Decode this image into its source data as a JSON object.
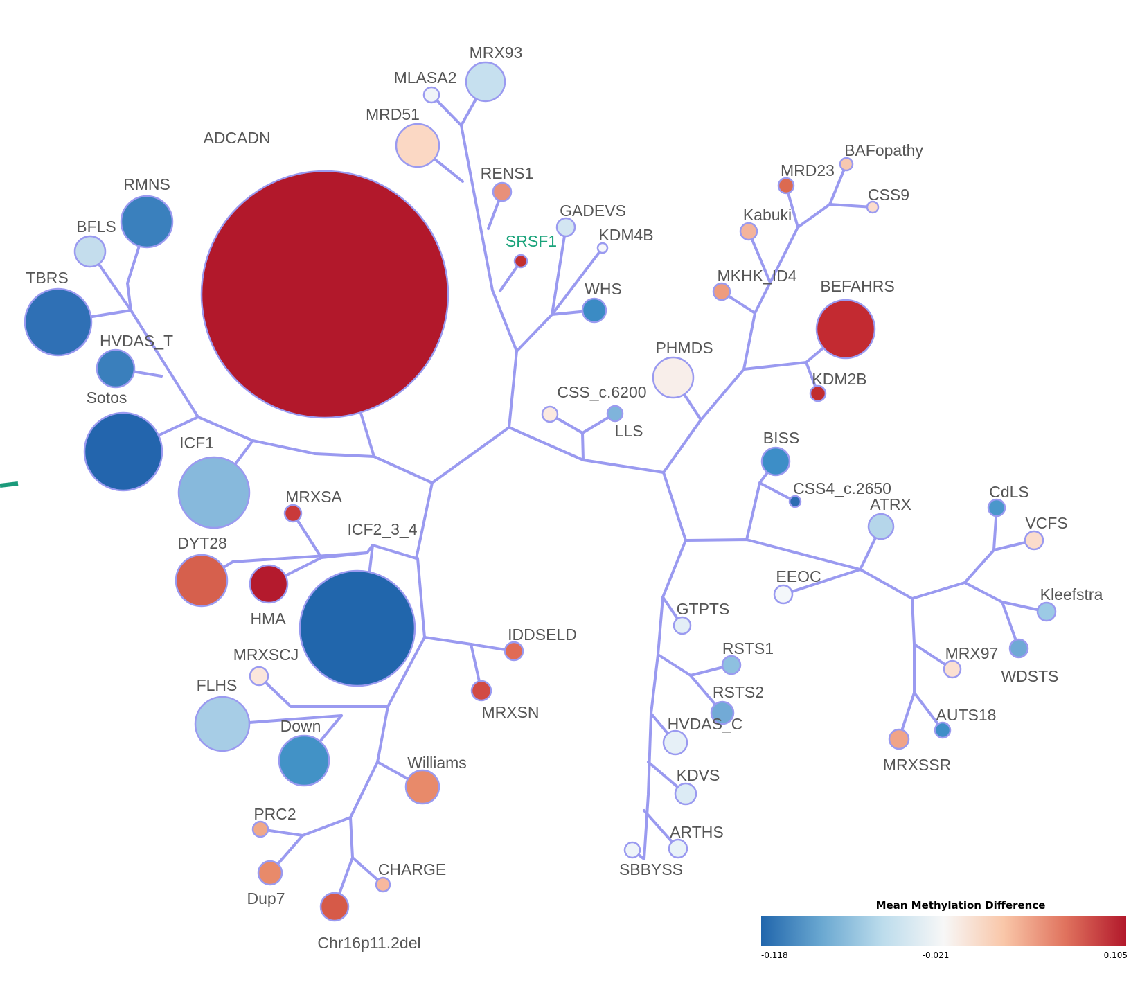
{
  "legend": {
    "title": "Mean Methylation Difference",
    "min_label": "-0.118",
    "mid_label": "-0.021",
    "max_label": "0.105",
    "colors": [
      "#2166ac",
      "#6aa8d1",
      "#bcdcec",
      "#f7f7f7",
      "#f9c6a8",
      "#e0735e",
      "#b2182b"
    ]
  },
  "edge_color": "#9a9af0",
  "node_border_color": "#9a9af0",
  "highlight_label_color": "#1aa37a",
  "nodes": [
    {
      "id": "ADCADN",
      "label": "ADCADN",
      "color": "#b2182b"
    },
    {
      "id": "RMNS",
      "label": "RMNS",
      "color": "#3a80bd"
    },
    {
      "id": "BFLS",
      "label": "BFLS",
      "color": "#c4dded"
    },
    {
      "id": "TBRS",
      "label": "TBRS",
      "color": "#2f70b5"
    },
    {
      "id": "HVDAS_T",
      "label": "HVDAS_T",
      "color": "#3a7fbc"
    },
    {
      "id": "Sotos",
      "label": "Sotos",
      "color": "#2365ad"
    },
    {
      "id": "ICF1",
      "label": "ICF1",
      "color": "#87b9dc"
    },
    {
      "id": "MRXSA",
      "label": "MRXSA",
      "color": "#c93a3a"
    },
    {
      "id": "DYT28",
      "label": "DYT28",
      "color": "#d6604d"
    },
    {
      "id": "HMA",
      "label": "HMA",
      "color": "#b41a2d"
    },
    {
      "id": "ICF2_3_4",
      "label": "ICF2_3_4",
      "color": "#2166ac"
    },
    {
      "id": "MRXSCJ",
      "label": "MRXSCJ",
      "color": "#fbe6dc"
    },
    {
      "id": "FLHS",
      "label": "FLHS",
      "color": "#a7cde6"
    },
    {
      "id": "Down",
      "label": "Down",
      "color": "#4292c6"
    },
    {
      "id": "Williams",
      "label": "Williams",
      "color": "#e88a6a"
    },
    {
      "id": "PRC2",
      "label": "PRC2",
      "color": "#f0a888"
    },
    {
      "id": "Dup7",
      "label": "Dup7",
      "color": "#e88a6a"
    },
    {
      "id": "CHARGE",
      "label": "CHARGE",
      "color": "#f7b89e"
    },
    {
      "id": "Chr16p11.2del",
      "label": "Chr16p11.2del",
      "color": "#d65a48"
    },
    {
      "id": "IDDSELD",
      "label": "IDDSELD",
      "color": "#e06b55"
    },
    {
      "id": "MRXSN",
      "label": "MRXSN",
      "color": "#d14a44"
    },
    {
      "id": "MRX93",
      "label": "MRX93",
      "color": "#c6e0ef"
    },
    {
      "id": "MLASA2",
      "label": "MLASA2",
      "color": "#f0f4f8"
    },
    {
      "id": "MRD51",
      "label": "MRD51",
      "color": "#fbd8c4"
    },
    {
      "id": "RENS1",
      "label": "RENS1",
      "color": "#e8907a"
    },
    {
      "id": "SRSF1",
      "label": "SRSF1",
      "color": "#c23030",
      "highlight": true
    },
    {
      "id": "GADEVS",
      "label": "GADEVS",
      "color": "#d3e6f2"
    },
    {
      "id": "KDM4B",
      "label": "KDM4B",
      "color": "#f5f7fa"
    },
    {
      "id": "WHS",
      "label": "WHS",
      "color": "#3b8bc4"
    },
    {
      "id": "CSS_c.6200",
      "label": "CSS_c.6200",
      "color": "#fbe9e0"
    },
    {
      "id": "LLS",
      "label": "LLS",
      "color": "#7fb4db"
    },
    {
      "id": "PHMDS",
      "label": "PHMDS",
      "color": "#f8eeea"
    },
    {
      "id": "MRD23",
      "label": "MRD23",
      "color": "#dc6a50"
    },
    {
      "id": "BAFopathy",
      "label": "BAFopathy",
      "color": "#f7c8b0"
    },
    {
      "id": "CSS9",
      "label": "CSS9",
      "color": "#fbdccc"
    },
    {
      "id": "Kabuki",
      "label": "Kabuki",
      "color": "#f4b49c"
    },
    {
      "id": "MKHK_ID4",
      "label": "MKHK_ID4",
      "color": "#ee9c7e"
    },
    {
      "id": "BEFAHRS",
      "label": "BEFAHRS",
      "color": "#c32a31"
    },
    {
      "id": "KDM2B",
      "label": "KDM2B",
      "color": "#c12d2f"
    },
    {
      "id": "BISS",
      "label": "BISS",
      "color": "#3d8ec7"
    },
    {
      "id": "CSS4_c.2650",
      "label": "CSS4_c.2650",
      "color": "#2c6cb2"
    },
    {
      "id": "ATRX",
      "label": "ATRX",
      "color": "#b5d6ea"
    },
    {
      "id": "EEOC",
      "label": "EEOC",
      "color": "#f4f7fa"
    },
    {
      "id": "GTPTS",
      "label": "GTPTS",
      "color": "#e3eef6"
    },
    {
      "id": "RSTS1",
      "label": "RSTS1",
      "color": "#8ec0e0"
    },
    {
      "id": "RSTS2",
      "label": "RSTS2",
      "color": "#72aad6"
    },
    {
      "id": "HVDAS_C",
      "label": "HVDAS_C",
      "color": "#e6f0f7"
    },
    {
      "id": "KDVS",
      "label": "KDVS",
      "color": "#dcebf5"
    },
    {
      "id": "ARTHS",
      "label": "ARTHS",
      "color": "#e8f2f8"
    },
    {
      "id": "SBBYSS",
      "label": "SBBYSS",
      "color": "#eef4f9"
    },
    {
      "id": "CdLS",
      "label": "CdLS",
      "color": "#4a97cb"
    },
    {
      "id": "VCFS",
      "label": "VCFS",
      "color": "#fbdccc"
    },
    {
      "id": "Kleefstra",
      "label": "Kleefstra",
      "color": "#9ccae5"
    },
    {
      "id": "MRX97",
      "label": "MRX97",
      "color": "#fbe0d2"
    },
    {
      "id": "WDSTS",
      "label": "WDSTS",
      "color": "#6fa9d5"
    },
    {
      "id": "AUTS18",
      "label": "AUTS18",
      "color": "#3f8ec7"
    },
    {
      "id": "MRXSSR",
      "label": "MRXSSR",
      "color": "#f0a488"
    }
  ]
}
